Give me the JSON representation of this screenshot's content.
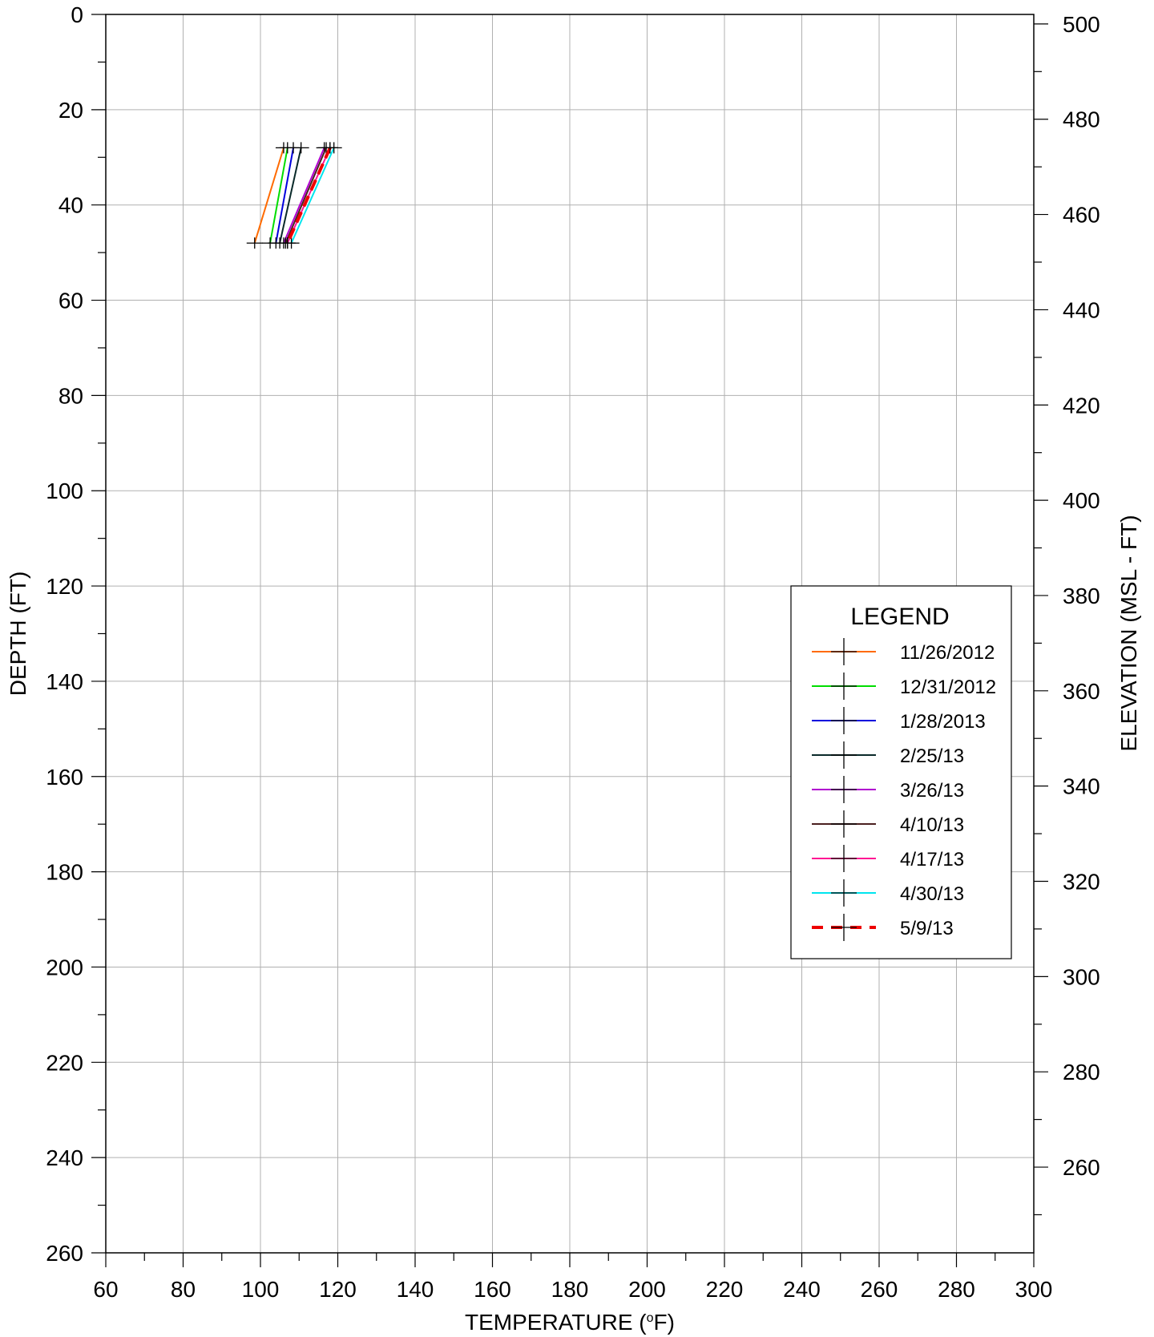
{
  "chart_data": {
    "type": "line",
    "x_axis": {
      "label": "TEMPERATURE (",
      "label_sup": "o",
      "label_end": "F)",
      "range": [
        60,
        300
      ],
      "ticks": [
        "60",
        "80",
        "100",
        "120",
        "140",
        "160",
        "180",
        "200",
        "220",
        "240",
        "260",
        "280",
        "300"
      ],
      "grid": true
    },
    "y_axis_left": {
      "label": "DEPTH (FT)",
      "range": [
        0,
        260
      ],
      "inverted": true,
      "ticks": [
        "0",
        "20",
        "40",
        "60",
        "80",
        "100",
        "120",
        "140",
        "160",
        "180",
        "200",
        "220",
        "240",
        "260"
      ],
      "grid": true
    },
    "y_axis_right": {
      "label": "ELEVATION (MSL - FT)",
      "range": [
        502,
        242
      ],
      "ticks": [
        "500",
        "480",
        "460",
        "440",
        "420",
        "400",
        "380",
        "360",
        "340",
        "320",
        "300",
        "280",
        "260"
      ]
    },
    "legend": {
      "title": "LEGEND",
      "position": "right-middle"
    },
    "series": [
      {
        "name": "11/26/2012",
        "color": "#ff6a00",
        "style": "solid",
        "points": [
          [
            106,
            28
          ],
          [
            98.5,
            48
          ]
        ]
      },
      {
        "name": "12/31/2012",
        "color": "#00dd00",
        "style": "solid",
        "points": [
          [
            107,
            28
          ],
          [
            102.5,
            48
          ]
        ]
      },
      {
        "name": "1/28/2013",
        "color": "#0000dd",
        "style": "solid",
        "points": [
          [
            108.5,
            28
          ],
          [
            104,
            48
          ]
        ]
      },
      {
        "name": "2/25/13",
        "color": "#0a2a2a",
        "style": "solid",
        "points": [
          [
            110.5,
            28
          ],
          [
            105,
            48
          ]
        ]
      },
      {
        "name": "3/26/13",
        "color": "#b000d0",
        "style": "solid",
        "points": [
          [
            116.5,
            28
          ],
          [
            106,
            48
          ]
        ]
      },
      {
        "name": "4/10/13",
        "color": "#4a2020",
        "style": "solid",
        "points": [
          [
            117,
            28
          ],
          [
            106.5,
            48
          ]
        ]
      },
      {
        "name": "4/17/13",
        "color": "#ff1493",
        "style": "solid",
        "points": [
          [
            118,
            28
          ],
          [
            107,
            48
          ]
        ]
      },
      {
        "name": "4/30/13",
        "color": "#00e5ee",
        "style": "solid",
        "points": [
          [
            119,
            28
          ],
          [
            108,
            48
          ]
        ]
      },
      {
        "name": "5/9/13",
        "color": "#ee0000",
        "style": "dashed",
        "points": [
          [
            118,
            28
          ],
          [
            107,
            48
          ]
        ]
      }
    ]
  }
}
